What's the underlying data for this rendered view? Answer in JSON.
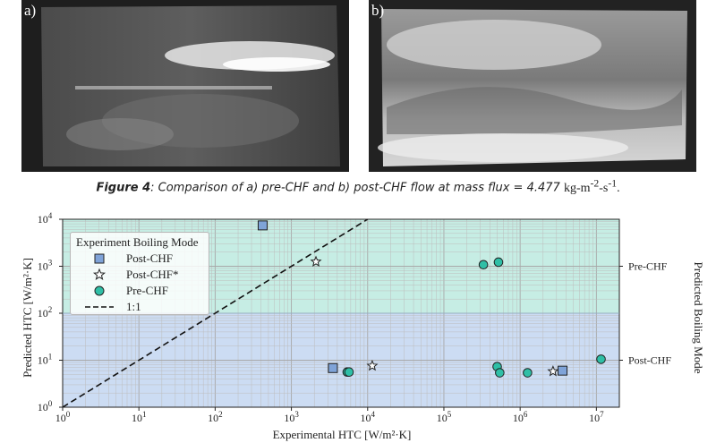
{
  "photos": [
    {
      "label": "a)"
    },
    {
      "label": "b)"
    }
  ],
  "caption": {
    "figure_label": "Figure 4",
    "text": ": Comparison of a) pre-CHF and b) post-CHF flow at mass flux = 4.477 ",
    "units_main": "kg-m",
    "units_exp1": "-2",
    "units_sep": "-s",
    "units_exp2": "-1",
    "units_end": "."
  },
  "chart": {
    "xlabel": "Experimental HTC [W/m²·K]",
    "ylabel": "Predicted HTC [W/m²·K]",
    "right_axis_label": "Predicted Boiling Mode",
    "right_tick_labels": [
      "Pre-CHF",
      "Post-CHF"
    ],
    "legend_title": "Experiment Boiling Mode",
    "legend_items": [
      "Post-CHF",
      "Post-CHF*",
      "Pre-CHF",
      "1:1"
    ],
    "x_ticks": [
      {
        "base": "10",
        "exp": "0"
      },
      {
        "base": "10",
        "exp": "1"
      },
      {
        "base": "10",
        "exp": "2"
      },
      {
        "base": "10",
        "exp": "3"
      },
      {
        "base": "10",
        "exp": "4"
      },
      {
        "base": "10",
        "exp": "5"
      },
      {
        "base": "10",
        "exp": "6"
      },
      {
        "base": "10",
        "exp": "7"
      }
    ],
    "y_ticks": [
      {
        "base": "10",
        "exp": "0"
      },
      {
        "base": "10",
        "exp": "1"
      },
      {
        "base": "10",
        "exp": "2"
      },
      {
        "base": "10",
        "exp": "3"
      },
      {
        "base": "10",
        "exp": "4"
      }
    ]
  },
  "chart_data": {
    "type": "scatter",
    "xscale": "log",
    "yscale": "log",
    "xlim": [
      1,
      20000000
    ],
    "ylim": [
      1,
      10000
    ],
    "grid": true,
    "legend_position": "top-left",
    "region_boundary_y": 100,
    "regions": [
      {
        "label": "Pre-CHF",
        "ymin": 100,
        "ymax": 10000,
        "color": "#c6ede4"
      },
      {
        "label": "Post-CHF",
        "ymin": 1,
        "ymax": 100,
        "color": "#ccdcf3"
      }
    ],
    "series": [
      {
        "name": "Post-CHF",
        "marker": "square",
        "color": "#7fa3d8",
        "points": [
          [
            420,
            7400
          ],
          [
            3500,
            6.8
          ],
          [
            3600000,
            6.0
          ]
        ]
      },
      {
        "name": "Post-CHF*",
        "marker": "star",
        "color": "#ffffff",
        "points": [
          [
            2100,
            1250
          ],
          [
            11500,
            7.6
          ],
          [
            2700000,
            5.8
          ]
        ]
      },
      {
        "name": "Pre-CHF",
        "marker": "circle",
        "color": "#2fbfa6",
        "points": [
          [
            330000,
            1080
          ],
          [
            520000,
            1220
          ],
          [
            5400,
            5.6
          ],
          [
            5700,
            5.6
          ],
          [
            500000,
            7.3
          ],
          [
            540000,
            5.4
          ],
          [
            1250000,
            5.4
          ],
          [
            11500000,
            10.5
          ]
        ]
      },
      {
        "name": "1:1",
        "marker": "dashed-line",
        "color": "#111111",
        "points": [
          [
            1,
            1
          ],
          [
            10000,
            10000
          ]
        ]
      }
    ]
  }
}
